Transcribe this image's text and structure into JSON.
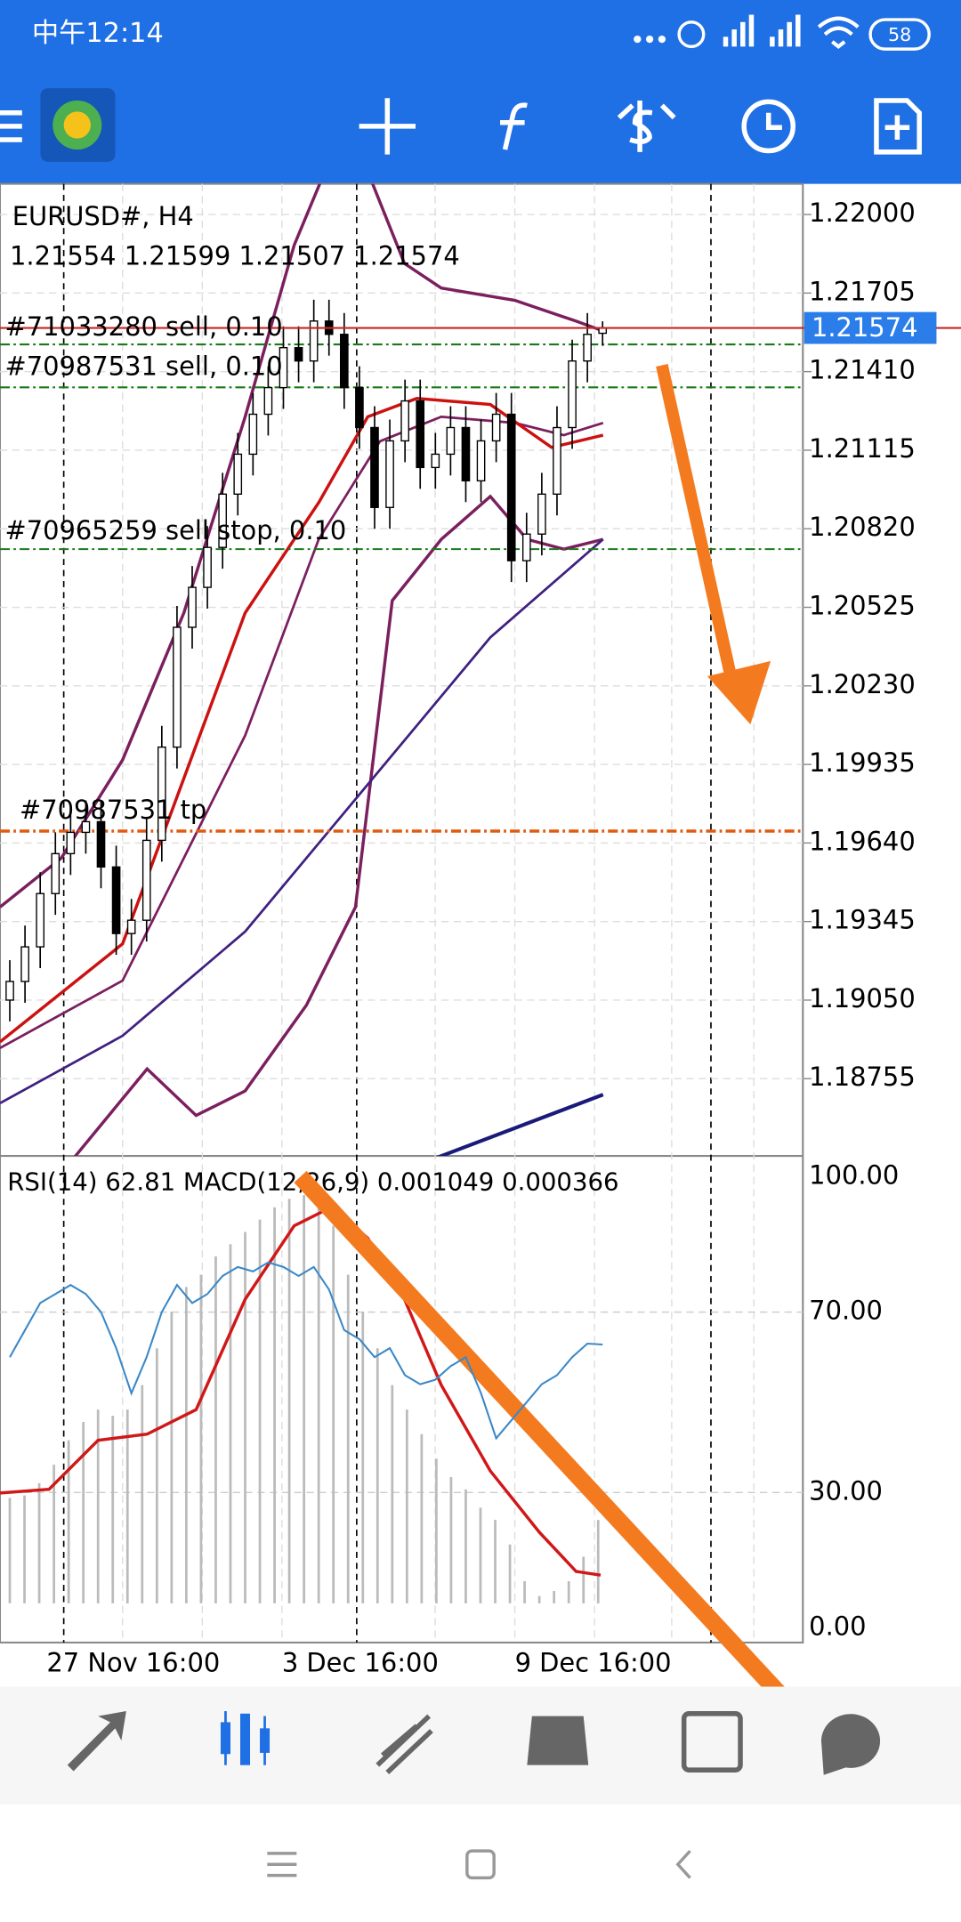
{
  "status_bar": {
    "time": "中午12:14",
    "battery": "58"
  },
  "chart": {
    "symbol": "EURUSD#, H4",
    "ohlc": "1.21554 1.21599 1.21507 1.21574",
    "orders": [
      "#71033280 sell, 0.10",
      "#70987531 sell, 0.10",
      "#70965259 sell stop, 0.10",
      "#70987531 tp"
    ],
    "current_price": {
      "value": 1.21574,
      "label": "1.21574"
    },
    "yticks": [
      {
        "value": 1.22,
        "label": "1.22000"
      },
      {
        "value": 1.21705,
        "label": "1.21705"
      },
      {
        "value": 1.2141,
        "label": "1.21410"
      },
      {
        "value": 1.21115,
        "label": "1.21115"
      },
      {
        "value": 1.2082,
        "label": "1.20820"
      },
      {
        "value": 1.20525,
        "label": "1.20525"
      },
      {
        "value": 1.2023,
        "label": "1.20230"
      },
      {
        "value": 1.19935,
        "label": "1.19935"
      },
      {
        "value": 1.1964,
        "label": "1.19640"
      },
      {
        "value": 1.19345,
        "label": "1.19345"
      },
      {
        "value": 1.1905,
        "label": "1.19050"
      },
      {
        "value": 1.18755,
        "label": "1.18755"
      }
    ],
    "candles": [
      [
        1.1905,
        1.192,
        1.1897,
        1.1912
      ],
      [
        1.1912,
        1.1933,
        1.1904,
        1.1925
      ],
      [
        1.1925,
        1.1953,
        1.1917,
        1.1945
      ],
      [
        1.1945,
        1.1968,
        1.1937,
        1.196
      ],
      [
        1.196,
        1.1976,
        1.1952,
        1.1968
      ],
      [
        1.1968,
        1.198,
        1.196,
        1.1972
      ],
      [
        1.1972,
        1.198,
        1.1947,
        1.1955
      ],
      [
        1.1955,
        1.1963,
        1.1922,
        1.193
      ],
      [
        1.193,
        1.1943,
        1.1922,
        1.1935
      ],
      [
        1.1935,
        1.1973,
        1.1927,
        1.1965
      ],
      [
        1.1965,
        1.2008,
        1.1957,
        1.2
      ],
      [
        1.2,
        1.2053,
        1.1992,
        1.2045
      ],
      [
        1.2045,
        1.2068,
        1.2037,
        1.206
      ],
      [
        1.206,
        1.2083,
        1.2052,
        1.2075
      ],
      [
        1.2075,
        1.2103,
        1.2067,
        1.2095
      ],
      [
        1.2095,
        1.2118,
        1.2087,
        1.211
      ],
      [
        1.211,
        1.2133,
        1.2102,
        1.2125
      ],
      [
        1.2125,
        1.2143,
        1.2117,
        1.2135
      ],
      [
        1.2135,
        1.2158,
        1.2127,
        1.215
      ],
      [
        1.215,
        1.2158,
        1.2137,
        1.2145
      ],
      [
        1.2145,
        1.2168,
        1.2137,
        1.216
      ],
      [
        1.216,
        1.2168,
        1.2147,
        1.2155
      ],
      [
        1.2155,
        1.2163,
        1.2127,
        1.2135
      ],
      [
        1.2135,
        1.2143,
        1.2112,
        1.212
      ],
      [
        1.212,
        1.2128,
        1.2082,
        1.209
      ],
      [
        1.209,
        1.2123,
        1.2082,
        1.2115
      ],
      [
        1.2115,
        1.2138,
        1.2107,
        1.213
      ],
      [
        1.213,
        1.2138,
        1.2097,
        1.2105
      ],
      [
        1.2105,
        1.2118,
        1.2097,
        1.211
      ],
      [
        1.211,
        1.2128,
        1.2102,
        1.212
      ],
      [
        1.212,
        1.2128,
        1.2092,
        1.21
      ],
      [
        1.21,
        1.2123,
        1.2092,
        1.2115
      ],
      [
        1.2115,
        1.2133,
        1.2107,
        1.2125
      ],
      [
        1.2125,
        1.2133,
        1.2062,
        1.207
      ],
      [
        1.207,
        1.2088,
        1.2062,
        1.208
      ],
      [
        1.208,
        1.2103,
        1.2072,
        1.2095
      ],
      [
        1.2095,
        1.2128,
        1.2087,
        1.212
      ],
      [
        1.212,
        1.2153,
        1.2112,
        1.2145
      ],
      [
        1.2145,
        1.2163,
        1.2137,
        1.2155
      ],
      [
        1.21554,
        1.21599,
        1.21507,
        1.21574
      ]
    ],
    "indicator_label": "RSI(14) 62.81 MACD(12,26,9) 0.001049 0.000366",
    "rsi": [
      60,
      66,
      72,
      74,
      76,
      74,
      70,
      62,
      52,
      60,
      70,
      76,
      72,
      74,
      78,
      80,
      79,
      81,
      80,
      78,
      80,
      75,
      66,
      64,
      60,
      62,
      56,
      54,
      55,
      58,
      60,
      52,
      42,
      46,
      50,
      54,
      56,
      60,
      63,
      62.81
    ],
    "rsi_ticks": [
      {
        "value": 100,
        "label": "100.00"
      },
      {
        "value": 70,
        "label": "70.00"
      },
      {
        "value": 30,
        "label": "30.00"
      },
      {
        "value": 0,
        "label": "0.00"
      }
    ],
    "dates": [
      "27 Nov 16:00",
      "3 Dec 16:00",
      "9 Dec 16:00"
    ]
  }
}
